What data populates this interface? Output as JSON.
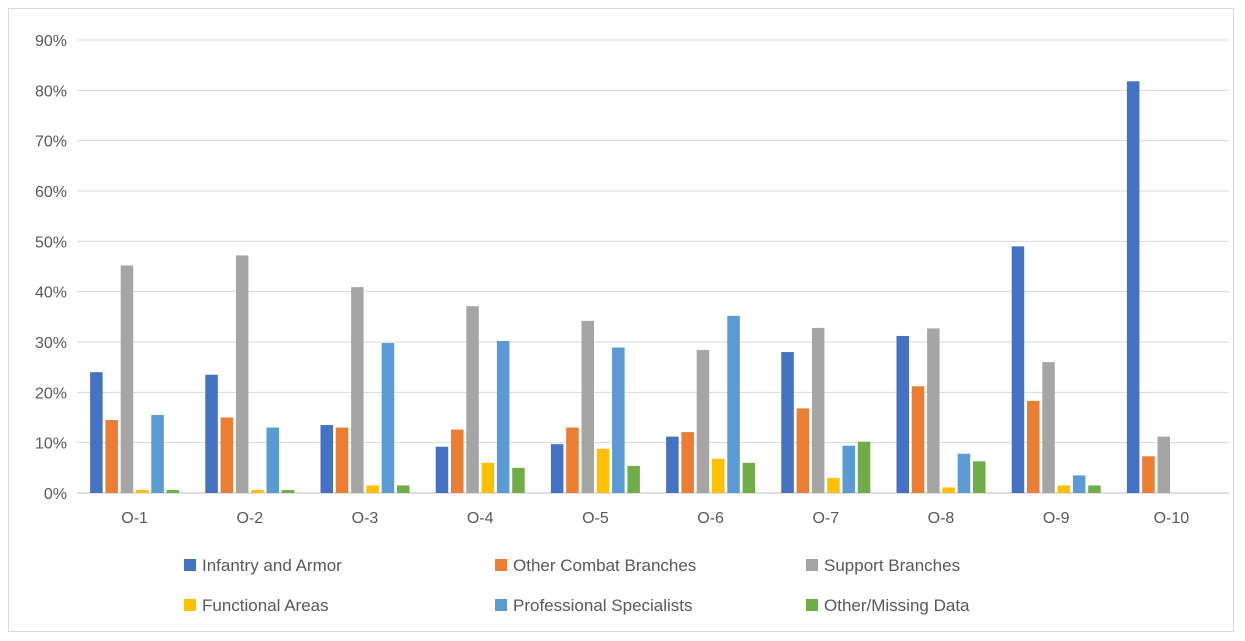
{
  "chart_data": {
    "type": "bar",
    "title": "",
    "xlabel": "",
    "ylabel": "",
    "ylim": [
      0,
      0.9
    ],
    "yticks": [
      0,
      0.1,
      0.2,
      0.3,
      0.4,
      0.5,
      0.6,
      0.7,
      0.8,
      0.9
    ],
    "ytick_labels": [
      "0%",
      "10%",
      "20%",
      "30%",
      "40%",
      "50%",
      "60%",
      "70%",
      "80%",
      "90%"
    ],
    "grid": true,
    "legend_position": "bottom",
    "categories": [
      "O-1",
      "O-2",
      "O-3",
      "O-4",
      "O-5",
      "O-6",
      "O-7",
      "O-8",
      "O-9",
      "O-10"
    ],
    "series": [
      {
        "name": "Infantry and Armor",
        "color": "#4472C4",
        "values": [
          0.24,
          0.235,
          0.135,
          0.092,
          0.097,
          0.112,
          0.28,
          0.312,
          0.49,
          0.818
        ]
      },
      {
        "name": "Other Combat Branches",
        "color": "#ED7D31",
        "values": [
          0.145,
          0.15,
          0.13,
          0.126,
          0.13,
          0.121,
          0.168,
          0.212,
          0.183,
          0.073
        ]
      },
      {
        "name": "Support Branches",
        "color": "#A5A5A5",
        "values": [
          0.452,
          0.472,
          0.409,
          0.371,
          0.342,
          0.284,
          0.328,
          0.327,
          0.26,
          0.112
        ]
      },
      {
        "name": "Functional Areas",
        "color": "#FFC000",
        "values": [
          0.006,
          0.006,
          0.015,
          0.06,
          0.088,
          0.068,
          0.03,
          0.011,
          0.015,
          0
        ]
      },
      {
        "name": "Professional Specialists",
        "color": "#5B9BD5",
        "values": [
          0.155,
          0.13,
          0.298,
          0.302,
          0.289,
          0.352,
          0.094,
          0.078,
          0.035,
          0
        ]
      },
      {
        "name": "Other/Missing Data",
        "color": "#70AD47",
        "values": [
          0.006,
          0.006,
          0.015,
          0.05,
          0.054,
          0.06,
          0.102,
          0.063,
          0.015,
          0
        ]
      }
    ]
  }
}
